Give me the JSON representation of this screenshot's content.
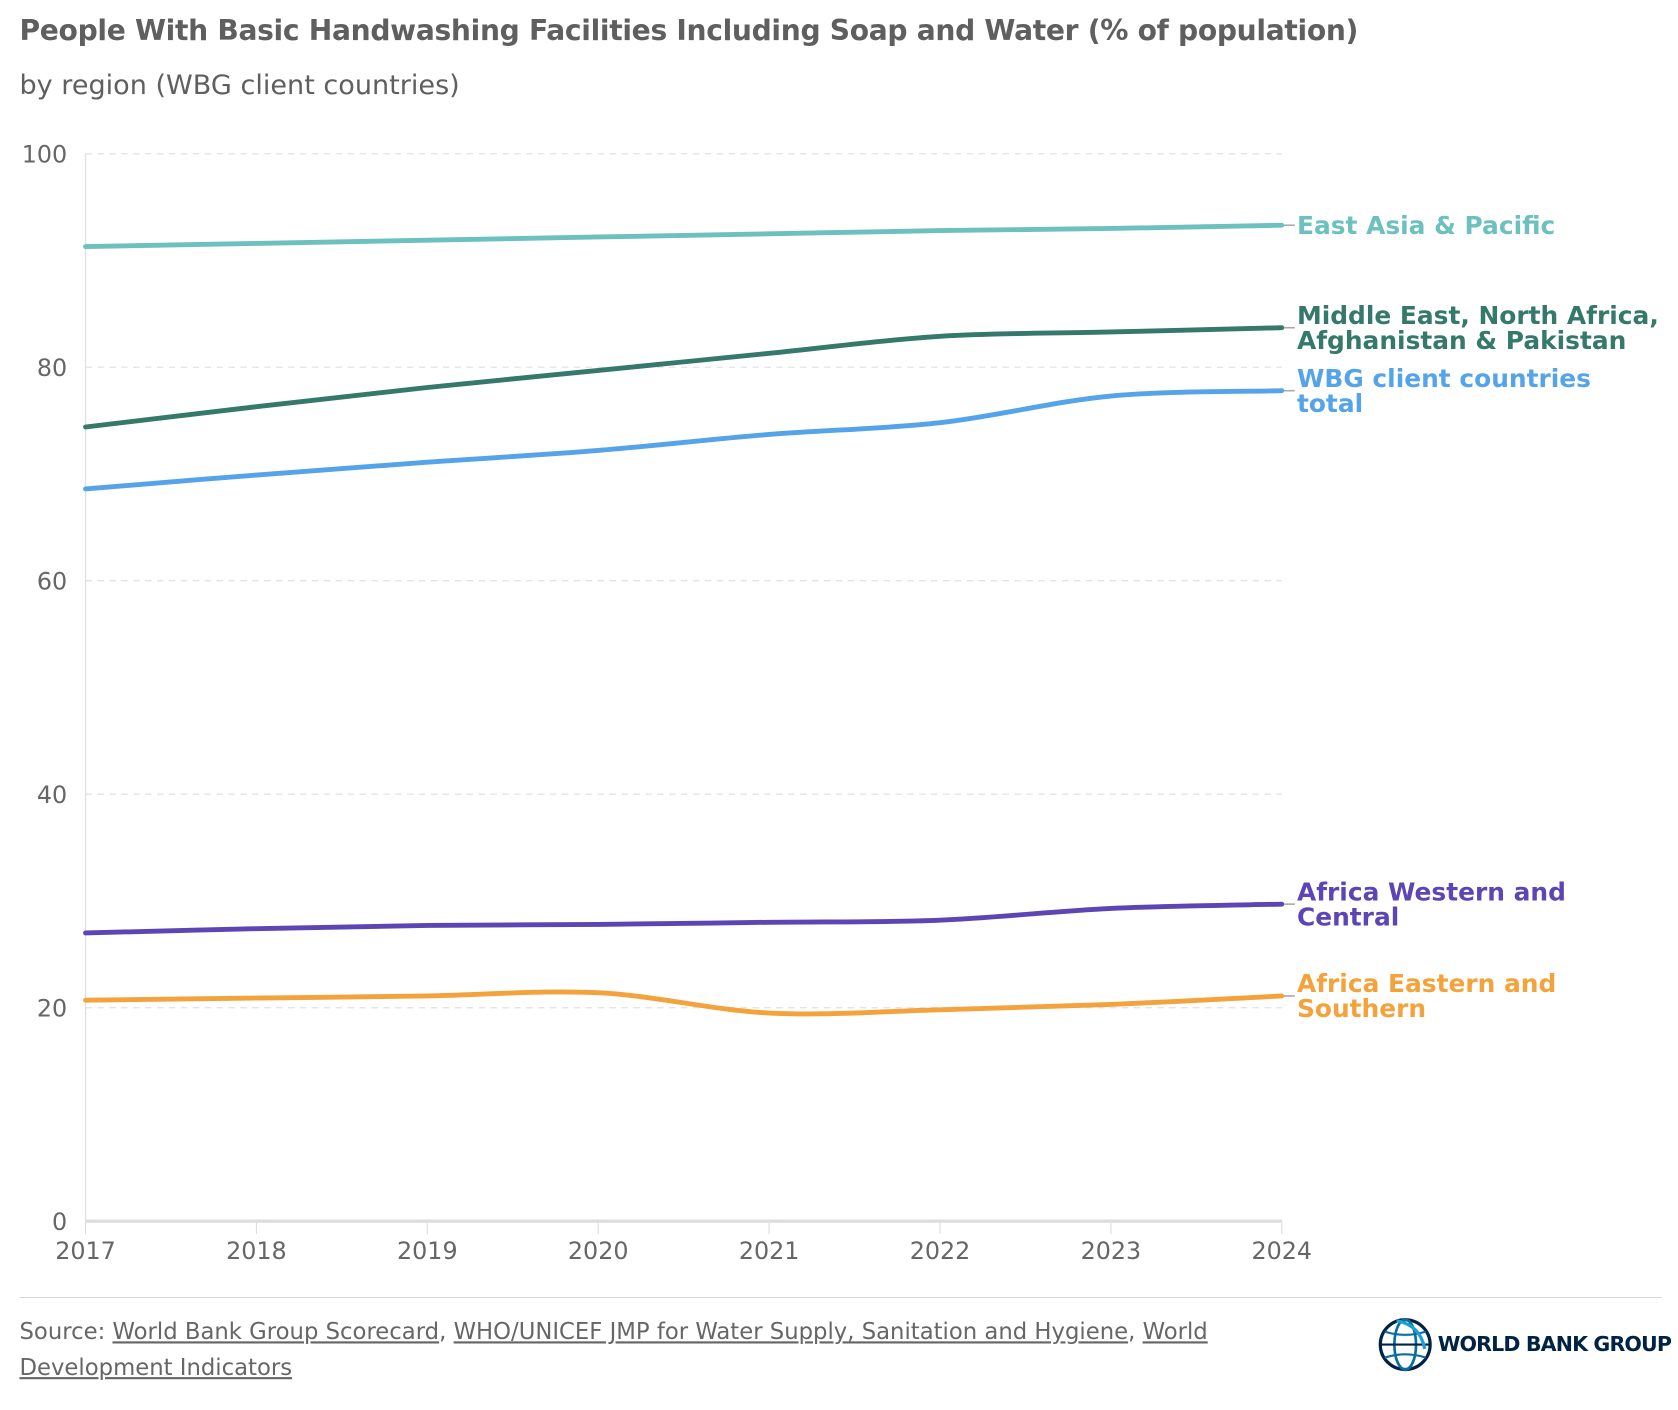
{
  "title": "People With Basic Handwashing Facilities Including Soap and Water (% of population)",
  "subtitle": "by region (WBG client countries)",
  "source": {
    "prefix": "Source: ",
    "links": [
      "World Bank Group Scorecard",
      "WHO/UNICEF JMP for Water Supply, Sanitation and Hygiene",
      "World Development Indicators"
    ]
  },
  "logo": "WORLD BANK GROUP",
  "chart_data": {
    "type": "line",
    "title": "People With Basic Handwashing Facilities Including Soap and Water (% of population)",
    "subtitle": "by region (WBG client countries)",
    "x": [
      2017,
      2018,
      2019,
      2020,
      2021,
      2022,
      2023,
      2024
    ],
    "x_ticks": [
      "2017",
      "2018",
      "2019",
      "2020",
      "2021",
      "2022",
      "2023",
      "2024"
    ],
    "y_ticks": [
      "0",
      "20",
      "40",
      "60",
      "80",
      "100"
    ],
    "ylim": [
      0,
      100
    ],
    "grid": true,
    "legend": "direct labels at right",
    "series": [
      {
        "name": "East Asia & Pacific",
        "label_lines": [
          "East Asia & Pacific"
        ],
        "color": "#6cc0bd",
        "values": [
          91.3,
          91.6,
          91.9,
          92.2,
          92.5,
          92.8,
          93.0,
          93.3
        ]
      },
      {
        "name": "Middle East, North Africa, Afghanistan & Pakistan",
        "label_lines": [
          "Middle East, North Africa,",
          "Afghanistan & Pakistan"
        ],
        "color": "#34796a",
        "values": [
          74.4,
          76.3,
          78.1,
          79.7,
          81.3,
          82.9,
          83.3,
          83.7
        ]
      },
      {
        "name": "WBG client countries total",
        "label_lines": [
          "WBG client countries",
          "total"
        ],
        "color": "#55a4ea",
        "values": [
          68.6,
          69.9,
          71.1,
          72.2,
          73.7,
          74.8,
          77.3,
          77.8
        ]
      },
      {
        "name": "Africa Western and Central",
        "label_lines": [
          "Africa Western and",
          "Central"
        ],
        "color": "#5d46b3",
        "values": [
          27.0,
          27.4,
          27.7,
          27.8,
          28.0,
          28.2,
          29.3,
          29.7
        ]
      },
      {
        "name": "Africa Eastern and Southern",
        "label_lines": [
          "Africa Eastern and",
          "Southern"
        ],
        "color": "#f4a23b",
        "values": [
          20.7,
          20.9,
          21.1,
          21.4,
          19.5,
          19.8,
          20.3,
          21.1
        ]
      }
    ]
  }
}
